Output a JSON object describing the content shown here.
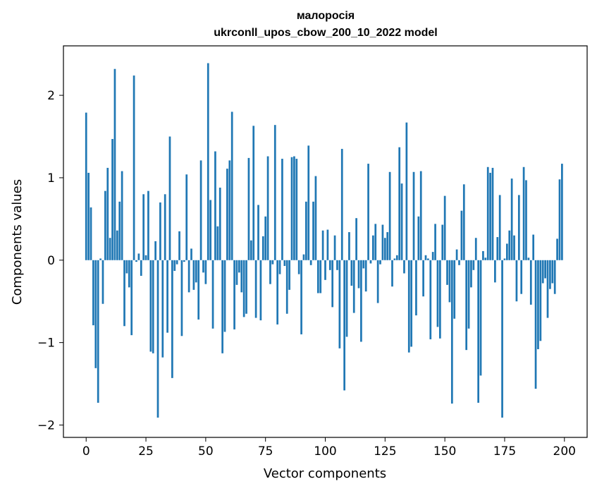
{
  "chart_data": {
    "type": "bar",
    "title": "малоросія",
    "subtitle": "ukrconll_upos_cbow_200_10_2022 model",
    "xlabel": "Vector components",
    "ylabel": "Components values",
    "xlim": [
      -9.5,
      209.5
    ],
    "ylim": [
      -2.15,
      2.6
    ],
    "xticks": [
      0,
      25,
      50,
      75,
      100,
      125,
      150,
      175,
      200
    ],
    "yticks": [
      -2,
      -1,
      0,
      1,
      2
    ],
    "ytick_labels": [
      "−2",
      "−1",
      "0",
      "1",
      "2"
    ],
    "bar_color": "#1f77b4",
    "grid": false,
    "values": [
      1.79,
      1.06,
      0.64,
      -0.79,
      -1.31,
      -1.73,
      0.02,
      -0.53,
      0.84,
      1.12,
      0.27,
      1.47,
      2.32,
      0.36,
      0.71,
      1.08,
      -0.8,
      -0.16,
      -0.33,
      -0.91,
      2.24,
      -0.02,
      0.08,
      -0.19,
      0.8,
      0.06,
      0.84,
      -1.11,
      -1.13,
      0.23,
      -1.91,
      0.7,
      -1.18,
      0.8,
      -0.88,
      1.5,
      -1.43,
      -0.13,
      -0.05,
      0.35,
      -0.92,
      -0.02,
      1.04,
      -0.39,
      0.14,
      -0.36,
      -0.27,
      -0.72,
      1.21,
      -0.15,
      -0.29,
      2.39,
      0.73,
      -0.83,
      1.32,
      0.41,
      0.88,
      -1.13,
      -0.87,
      1.11,
      1.21,
      1.8,
      -0.84,
      -0.3,
      -0.15,
      -0.39,
      -0.69,
      -0.65,
      1.24,
      0.24,
      1.63,
      -0.7,
      0.67,
      -0.73,
      0.29,
      0.53,
      1.26,
      -0.29,
      -0.05,
      1.64,
      -0.78,
      -0.17,
      1.23,
      -0.07,
      -0.65,
      -0.36,
      1.25,
      1.26,
      1.23,
      -0.17,
      -0.9,
      0.07,
      0.71,
      1.39,
      -0.06,
      0.71,
      1.02,
      -0.4,
      -0.4,
      0.36,
      -0.24,
      0.37,
      -0.12,
      -0.57,
      0.3,
      -0.12,
      -1.07,
      1.35,
      -1.58,
      -0.93,
      0.34,
      -0.31,
      -0.64,
      0.51,
      -0.34,
      -0.99,
      -0.1,
      -0.38,
      1.17,
      -0.04,
      0.3,
      0.44,
      -0.52,
      -0.05,
      0.43,
      0.27,
      0.34,
      1.07,
      -0.32,
      0.02,
      0.06,
      1.37,
      0.93,
      -0.16,
      1.67,
      -1.12,
      -1.05,
      1.07,
      -0.67,
      0.53,
      1.08,
      -0.44,
      0.06,
      0.02,
      -0.96,
      0.1,
      0.44,
      -0.81,
      -0.95,
      0.43,
      0.78,
      -0.3,
      -0.51,
      -1.74,
      -0.71,
      0.13,
      -0.06,
      0.6,
      0.92,
      -1.09,
      -0.83,
      -0.33,
      -0.12,
      0.27,
      -1.73,
      -1.4,
      0.11,
      0.03,
      1.13,
      1.06,
      1.12,
      -0.27,
      0.28,
      0.79,
      -1.91,
      0.02,
      0.2,
      0.36,
      0.99,
      0.3,
      -0.5,
      0.79,
      -0.41,
      1.13,
      0.97,
      0.03,
      -0.54,
      0.31,
      -1.56,
      -1.08,
      -0.98,
      -0.28,
      -0.22,
      -0.7,
      -0.35,
      -0.28,
      -0.41,
      0.26,
      0.98,
      1.17
    ]
  }
}
